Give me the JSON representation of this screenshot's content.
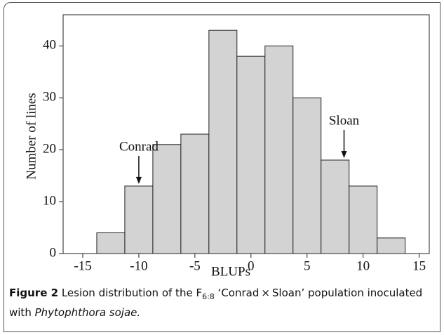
{
  "chart_data": {
    "type": "histogram",
    "xlabel": "BLUPs",
    "ylabel": "Number of lines",
    "bins": [
      -13.75,
      -11.25,
      -8.75,
      -6.25,
      -3.75,
      -1.25,
      1.25,
      3.75,
      6.25,
      8.75,
      11.25,
      13.75
    ],
    "values": [
      4,
      13,
      21,
      23,
      43,
      38,
      40,
      30,
      18,
      13,
      3
    ],
    "color": "#d3d3d3",
    "xlim": [
      -16.75,
      15.9
    ],
    "xticks": [
      -15,
      -10,
      -5,
      0,
      5,
      10,
      15
    ],
    "ylim": [
      0,
      46
    ],
    "yticks": [
      0,
      10,
      20,
      30,
      40
    ],
    "annotations": [
      {
        "text": "Conrad",
        "x": -10,
        "y": 13
      },
      {
        "text": "Sloan",
        "x": 8.3,
        "y": 18
      }
    ]
  },
  "caption": {
    "label": "Figure 2",
    "text1": "Lesion distribution of the F",
    "subscript": "6:8",
    "text2": " ‘Conrad × Sloan’ population inoculated with ",
    "italic": "Phytophthora sojae."
  }
}
